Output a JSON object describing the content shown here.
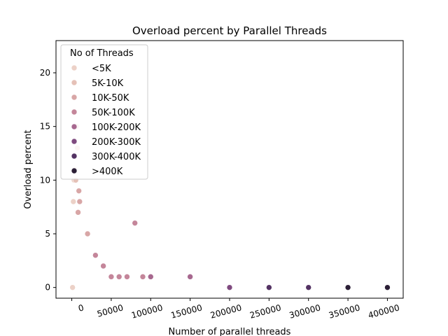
{
  "chart_data": {
    "type": "scatter",
    "title": "Overload percent by Parallel Threads",
    "xlabel": "Number of parallel threads",
    "ylabel": "Overload percent",
    "xlim": [
      -20000,
      420000
    ],
    "ylim": [
      -1,
      23
    ],
    "x_ticks": [
      0,
      50000,
      100000,
      150000,
      200000,
      250000,
      300000,
      350000,
      400000
    ],
    "y_ticks": [
      0,
      5,
      10,
      15,
      20
    ],
    "grid": false,
    "legend": {
      "title": "No of Threads",
      "placement": "top-left",
      "entries": [
        {
          "label": "<5K",
          "color": "#ecd1c7"
        },
        {
          "label": "5K-10K",
          "color": "#e5c1b7"
        },
        {
          "label": "10K-50K",
          "color": "#d8a6a6"
        },
        {
          "label": "50K-100K",
          "color": "#c4869a"
        },
        {
          "label": "100K-200K",
          "color": "#a7688f"
        },
        {
          "label": "200K-300K",
          "color": "#7f4a7f"
        },
        {
          "label": "300K-400K",
          "color": "#533263"
        },
        {
          "label": ">400K",
          "color": "#2b1f36"
        }
      ]
    },
    "series": [
      {
        "name": "<5K",
        "points": [
          [
            1000,
            0
          ],
          [
            2000,
            8
          ],
          [
            3000,
            10
          ],
          [
            4000,
            11
          ]
        ]
      },
      {
        "name": "5K-10K",
        "points": [
          [
            5000,
            10
          ],
          [
            6000,
            15
          ],
          [
            7000,
            13
          ]
        ]
      },
      {
        "name": "10K-50K",
        "points": [
          [
            8000,
            7
          ],
          [
            9000,
            9
          ],
          [
            10000,
            8
          ],
          [
            20000,
            5
          ]
        ]
      },
      {
        "name": "50K-100K",
        "points": [
          [
            30000,
            3
          ],
          [
            40000,
            2
          ],
          [
            50000,
            1
          ],
          [
            60000,
            1
          ],
          [
            70000,
            1
          ],
          [
            80000,
            6
          ],
          [
            90000,
            1
          ]
        ]
      },
      {
        "name": "100K-200K",
        "points": [
          [
            100000,
            1
          ],
          [
            150000,
            1
          ]
        ]
      },
      {
        "name": "200K-300K",
        "points": [
          [
            200000,
            0
          ]
        ]
      },
      {
        "name": "300K-400K",
        "points": [
          [
            250000,
            0
          ],
          [
            300000,
            0
          ]
        ]
      },
      {
        "name": ">400K",
        "points": [
          [
            350000,
            0
          ],
          [
            400000,
            0
          ]
        ]
      }
    ]
  }
}
